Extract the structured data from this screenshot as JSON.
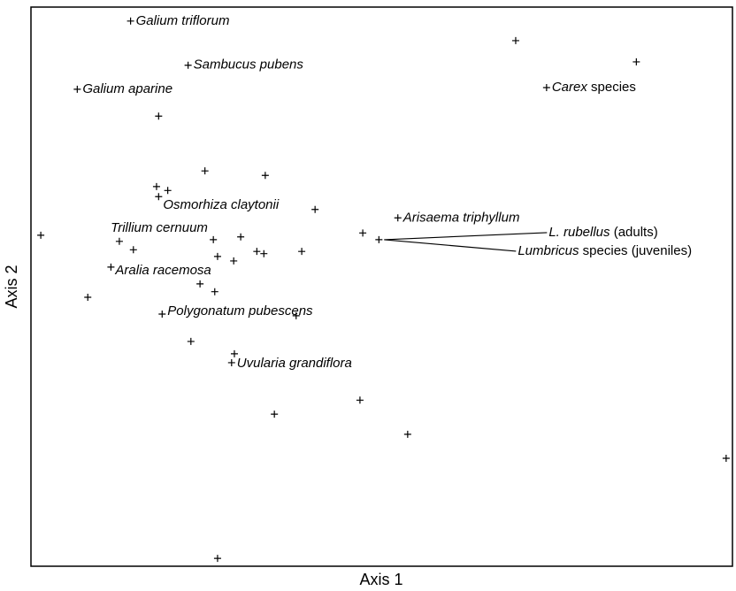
{
  "chart_data": {
    "type": "scatter",
    "x_label": "Axis 1",
    "y_label": "Axis 2",
    "xlim": [
      0,
      100
    ],
    "ylim": [
      0,
      100
    ],
    "color": "#000000",
    "x": [
      14.2,
      69.1,
      86.3,
      22.4,
      73.5,
      6.6,
      18.2,
      24.8,
      33.4,
      17.9,
      19.5,
      18.2,
      40.5,
      52.3,
      1.4,
      47.3,
      49.6,
      12.6,
      14.6,
      26.0,
      29.9,
      26.6,
      28.9,
      32.2,
      33.2,
      38.6,
      11.4,
      8.1,
      24.1,
      26.2,
      18.7,
      37.8,
      22.8,
      29.0,
      28.6,
      46.9,
      34.7,
      53.7,
      99.1,
      26.6
    ],
    "y": [
      97.5,
      94.0,
      90.2,
      89.6,
      85.6,
      85.3,
      80.5,
      70.7,
      69.9,
      67.9,
      67.2,
      66.1,
      63.8,
      62.3,
      59.2,
      59.6,
      58.4,
      58.1,
      56.6,
      58.4,
      58.9,
      55.4,
      54.6,
      56.3,
      55.9,
      56.3,
      53.5,
      48.1,
      50.5,
      49.1,
      45.1,
      44.8,
      40.2,
      38.0,
      36.4,
      29.7,
      27.2,
      23.6,
      19.3,
      1.4
    ],
    "annotations": [
      {
        "point": 0,
        "parts": [
          {
            "text": "Galium triflorum",
            "italic": true
          }
        ]
      },
      {
        "point": 3,
        "parts": [
          {
            "text": "Sambucus pubens",
            "italic": true
          }
        ]
      },
      {
        "point": 4,
        "parts": [
          {
            "text": "Carex",
            "italic": true
          },
          {
            "text": " species",
            "italic": false
          }
        ]
      },
      {
        "point": 5,
        "parts": [
          {
            "text": "Galium aparine",
            "italic": true
          }
        ]
      },
      {
        "point": 11,
        "parts": [
          {
            "text": "Osmorhiza claytonii",
            "italic": true
          }
        ]
      },
      {
        "point": 13,
        "parts": [
          {
            "text": "Arisaema triphyllum",
            "italic": true
          }
        ]
      },
      {
        "point": 16,
        "leader": true,
        "parts": [
          {
            "text": "L. rubellus",
            "italic": true
          },
          {
            "text": " (adults)",
            "italic": false
          }
        ]
      },
      {
        "point": 16,
        "leader": true,
        "parts": [
          {
            "text": "Lumbricus",
            "italic": true
          },
          {
            "text": " species (juveniles)",
            "italic": false
          }
        ]
      },
      {
        "point": 19,
        "parts": [
          {
            "text": "Trillium cernuum",
            "italic": true
          }
        ]
      },
      {
        "point": 26,
        "parts": [
          {
            "text": "Aralia racemosa",
            "italic": true
          }
        ]
      },
      {
        "point": 30,
        "parts": [
          {
            "text": "Polygonatum pubescens",
            "italic": true
          }
        ]
      },
      {
        "point": 34,
        "parts": [
          {
            "text": "Uvularia grandiflora",
            "italic": true
          }
        ]
      }
    ]
  }
}
